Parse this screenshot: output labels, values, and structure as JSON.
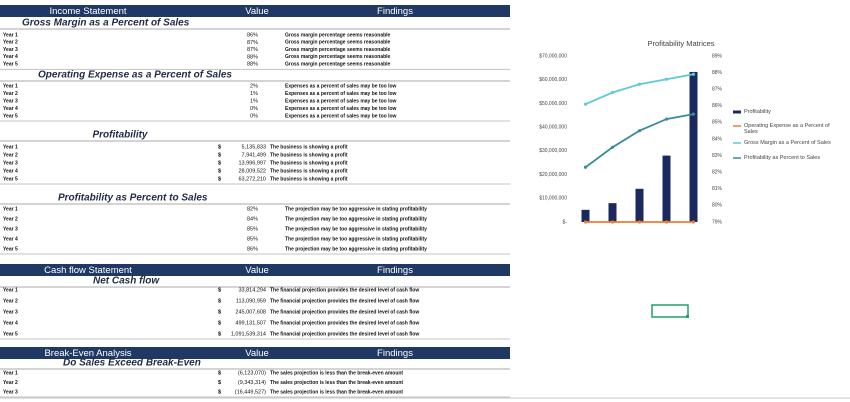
{
  "table": {
    "blocks": [
      {
        "header": [
          "Income Statement",
          "Value",
          "Findings"
        ]
      },
      {
        "title": "Gross Margin as a Percent of Sales",
        "rows": [
          [
            "Year 1",
            "86%",
            "Gross margin percentage seems reasonable"
          ],
          [
            "Year 2",
            "87%",
            "Gross margin percentage seems reasonable"
          ],
          [
            "Year 3",
            "87%",
            "Gross margin percentage seems reasonable"
          ],
          [
            "Year 4",
            "88%",
            "Gross margin percentage seems reasonable"
          ],
          [
            "Year 5",
            "88%",
            "Gross margin percentage seems reasonable"
          ]
        ]
      },
      {
        "title": "Operating Expense as a Percent of Sales",
        "rows": [
          [
            "Year 1",
            "2%",
            "Expenses as a percent of sales may be too low"
          ],
          [
            "Year 2",
            "1%",
            "Expenses as a percent of sales may be too low"
          ],
          [
            "Year 3",
            "1%",
            "Expenses as a percent of sales may be too low"
          ],
          [
            "Year 4",
            "0%",
            "Expenses as a percent of sales may be too low"
          ],
          [
            "Year 5",
            "0%",
            "Expenses as a percent of sales may be too low"
          ]
        ]
      },
      {
        "title": "Profitability",
        "rows": [
          [
            "Year 1",
            "$",
            "5,135,833",
            "The business is showing a profit"
          ],
          [
            "Year 2",
            "$",
            "7,941,499",
            "The business is showing a profit"
          ],
          [
            "Year 3",
            "$",
            "13,996,997",
            "The business is showing a profit"
          ],
          [
            "Year 4",
            "$",
            "28,009,522",
            "The business is showing a profit"
          ],
          [
            "Year 5",
            "$",
            "63,272,210",
            "The business is showing a profit"
          ]
        ]
      },
      {
        "title": "Profitability as Percent to Sales",
        "rows": [
          [
            "Year 1",
            "82%",
            "The projection may be too aggressive in stating profitability"
          ],
          [
            "Year 2",
            "84%",
            "The projection may be too aggressive in stating profitability"
          ],
          [
            "Year 3",
            "85%",
            "The projection may be too aggressive in stating profitability"
          ],
          [
            "Year 4",
            "85%",
            "The projection may be too aggressive in stating profitability"
          ],
          [
            "Year 5",
            "86%",
            "The projection may be too aggressive in stating profitability"
          ]
        ]
      },
      {
        "header": [
          "Cash flow Statement",
          "Value",
          "Findings"
        ]
      },
      {
        "title": "Net Cash flow",
        "rows": [
          [
            "Year 1",
            "$",
            "33,814,294",
            "The financial projection provides the desired level of cash flow"
          ],
          [
            "Year 2",
            "$",
            "113,090,959",
            "The financial projection provides the desired level of cash flow"
          ],
          [
            "Year 3",
            "$",
            "245,007,608",
            "The financial projection provides the desired level of cash flow"
          ],
          [
            "Year 4",
            "$",
            "499,131,507",
            "The financial projection provides the desired level of cash flow"
          ],
          [
            "Year 5",
            "$",
            "1,091,539,314",
            "The financial projection provides the desired level of cash flow"
          ]
        ]
      },
      {
        "header": [
          "Break-Even Analysis",
          "Value",
          "Findings"
        ]
      },
      {
        "title": "Do Sales Exceed Break-Even",
        "rows": [
          [
            "Year 1",
            "$",
            "(6,123,070)",
            "The sales projection is less than the break-even amount"
          ],
          [
            "Year 2",
            "$",
            "(9,343,314)",
            "The sales projection is less than the break-even amount"
          ],
          [
            "Year 3",
            "$",
            "(16,449,527)",
            "The sales projection is less than the break-even amount"
          ]
        ]
      }
    ]
  },
  "chart_data": {
    "type": "bar",
    "title": "Profitability Matrices",
    "categories": [
      null,
      null,
      null,
      null,
      null
    ],
    "series": [
      {
        "name": "Profitability",
        "type": "bar",
        "color": "#1b2a5e",
        "values": [
          5135833,
          7941499,
          13996997,
          28009522,
          63272210
        ]
      },
      {
        "name": "Operating Expense as a Percent of Sales",
        "type": "line",
        "color": "#ed7d31",
        "values": [
          0.02,
          0.01,
          0.01,
          0,
          0
        ]
      },
      {
        "name": "Gross Margin as a Percent of Sales",
        "type": "line",
        "axis": "y2",
        "color": "#5fcad2",
        "values": [
          86.1,
          86.8,
          87.3,
          87.6,
          87.9
        ]
      },
      {
        "name": "Profitability as Percent to Sales",
        "type": "line",
        "axis": "y2",
        "color": "#3a8c98",
        "values": [
          82.3,
          83.5,
          84.5,
          85.2,
          85.5
        ]
      }
    ],
    "ylim": [
      0,
      70000000
    ],
    "yticks": [
      {
        "value": 0,
        "label": "$-"
      },
      {
        "value": 10000000,
        "label": "$10,000,000"
      },
      {
        "value": 20000000,
        "label": "$20,000,000"
      },
      {
        "value": 30000000,
        "label": "$30,000,000"
      },
      {
        "value": 40000000,
        "label": "$40,000,000"
      },
      {
        "value": 50000000,
        "label": "$50,000,000"
      },
      {
        "value": 60000000,
        "label": "$60,000,000"
      },
      {
        "value": 70000000,
        "label": "$70,000,000"
      }
    ],
    "y2lim": [
      79,
      89
    ],
    "y2ticks": [
      {
        "value": 79,
        "label": "79%"
      },
      {
        "value": 80,
        "label": "80%"
      },
      {
        "value": 81,
        "label": "81%"
      },
      {
        "value": 82,
        "label": "82%"
      },
      {
        "value": 83,
        "label": "83%"
      },
      {
        "value": 84,
        "label": "84%"
      },
      {
        "value": 85,
        "label": "85%"
      },
      {
        "value": 86,
        "label": "86%"
      },
      {
        "value": 87,
        "label": "87%"
      },
      {
        "value": 88,
        "label": "88%"
      },
      {
        "value": 89,
        "label": "89%"
      }
    ],
    "legend": "right"
  }
}
